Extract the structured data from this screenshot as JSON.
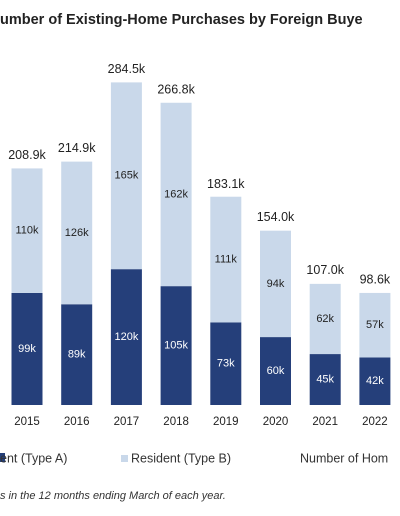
{
  "chart_data": {
    "type": "stacked_bar",
    "title": "umber of Existing-Home Purchases by Foreign Buye",
    "categories": [
      "2015",
      "2016",
      "2017",
      "2018",
      "2019",
      "2020",
      "2021",
      "2022"
    ],
    "series": [
      {
        "name": "ent (Type A)",
        "color": "#253f7a",
        "values": [
          99,
          89,
          120,
          105,
          73,
          60,
          45,
          42
        ],
        "value_labels": [
          "99k",
          "89k",
          "120k",
          "105k",
          "73k",
          "60k",
          "45k",
          "42k"
        ]
      },
      {
        "name": "Resident (Type B)",
        "color": "#c9d8ea",
        "values": [
          110,
          126,
          165,
          162,
          111,
          94,
          62,
          57
        ],
        "value_labels": [
          "110k",
          "126k",
          "165k",
          "162k",
          "111k",
          "94k",
          "62k",
          "57k"
        ]
      }
    ],
    "totals": {
      "name": "Number of Hom",
      "values": [
        208.9,
        214.9,
        284.5,
        266.8,
        183.1,
        154.0,
        107.0,
        98.6
      ],
      "value_labels": [
        "208.9k",
        "214.9k",
        "284.5k",
        "266.8k",
        "183.1k",
        "154.0k",
        "107.0k",
        "98.6k"
      ]
    },
    "note": "s in the 12 months ending March of each year."
  }
}
